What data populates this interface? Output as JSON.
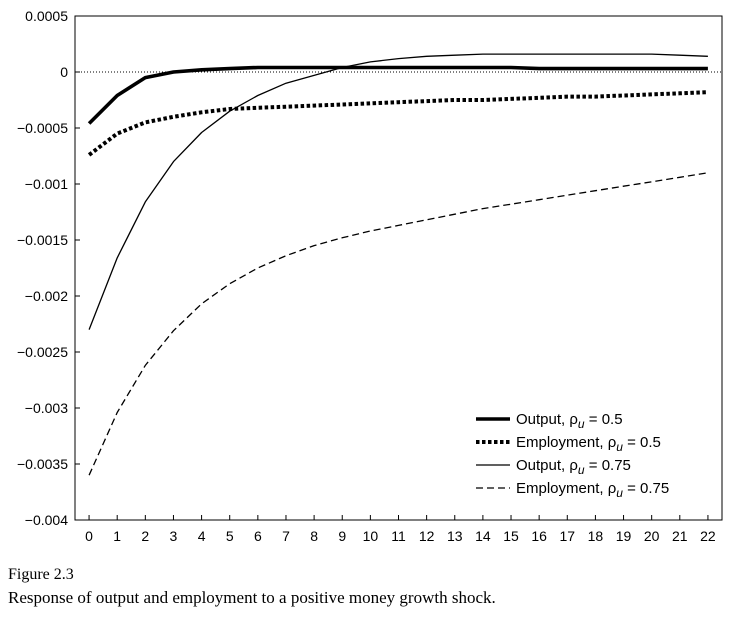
{
  "figure": {
    "title": "Figure 2.3",
    "caption": "Response of output and employment to a positive money growth shock."
  },
  "chart_data": {
    "type": "line",
    "title": "",
    "xlabel": "",
    "ylabel": "",
    "x": [
      0,
      1,
      2,
      3,
      4,
      5,
      6,
      7,
      8,
      9,
      10,
      11,
      12,
      13,
      14,
      15,
      16,
      17,
      18,
      19,
      20,
      21,
      22
    ],
    "xlim": [
      -0.5,
      22.5
    ],
    "ylim": [
      -0.004,
      0.0005
    ],
    "y_ticks": [
      0.0005,
      0,
      -0.0005,
      -0.001,
      -0.0015,
      -0.002,
      -0.0025,
      -0.003,
      -0.0035,
      -0.004
    ],
    "y_tick_labels": [
      "0.0005",
      "0",
      "−0.0005",
      "−0.001",
      "−0.0015",
      "−0.002",
      "−0.0025",
      "−0.003",
      "−0.0035",
      "−0.004"
    ],
    "x_tick_labels": [
      "0",
      "1",
      "2",
      "3",
      "4",
      "5",
      "6",
      "7",
      "8",
      "9",
      "10",
      "11",
      "12",
      "13",
      "14",
      "15",
      "16",
      "17",
      "18",
      "19",
      "20",
      "21",
      "22"
    ],
    "zero_line": "dotted",
    "grid": false,
    "legend_position": "bottom-right",
    "series": [
      {
        "name": "Output, ρu = 0.5",
        "legend_main": "Output, ρ",
        "legend_sub": "u",
        "legend_tail": " = 0.5",
        "style": "thick-solid",
        "values": [
          -0.00046,
          -0.00021,
          -5e-05,
          0.0,
          2e-05,
          3e-05,
          4e-05,
          4e-05,
          4e-05,
          4e-05,
          4e-05,
          4e-05,
          4e-05,
          4e-05,
          4e-05,
          4e-05,
          3e-05,
          3e-05,
          3e-05,
          3e-05,
          3e-05,
          3e-05,
          3e-05
        ]
      },
      {
        "name": "Employment, ρu = 0.5",
        "legend_main": "Employment, ρ",
        "legend_sub": "u",
        "legend_tail": " = 0.5",
        "style": "thick-dotted",
        "values": [
          -0.00074,
          -0.00055,
          -0.00045,
          -0.0004,
          -0.00036,
          -0.00033,
          -0.00032,
          -0.00031,
          -0.0003,
          -0.00029,
          -0.00028,
          -0.00027,
          -0.00026,
          -0.00025,
          -0.00025,
          -0.00024,
          -0.00023,
          -0.00022,
          -0.00022,
          -0.00021,
          -0.0002,
          -0.00019,
          -0.00018
        ]
      },
      {
        "name": "Output, ρu = 0.75",
        "legend_main": "Output, ρ",
        "legend_sub": "u",
        "legend_tail": " = 0.75",
        "style": "thin-solid",
        "values": [
          -0.0023,
          -0.00166,
          -0.00116,
          -0.0008,
          -0.00054,
          -0.00035,
          -0.00021,
          -0.0001,
          -3e-05,
          4e-05,
          9e-05,
          0.00012,
          0.00014,
          0.00015,
          0.00016,
          0.00016,
          0.00016,
          0.00016,
          0.00016,
          0.00016,
          0.00016,
          0.00015,
          0.00014
        ]
      },
      {
        "name": "Employment, ρu = 0.75",
        "legend_main": "Employment, ρ",
        "legend_sub": "u",
        "legend_tail": " = 0.75",
        "style": "dashed",
        "values": [
          -0.0036,
          -0.00304,
          -0.00262,
          -0.00231,
          -0.00207,
          -0.00189,
          -0.00175,
          -0.00164,
          -0.00155,
          -0.00148,
          -0.00142,
          -0.00137,
          -0.00132,
          -0.00127,
          -0.00122,
          -0.00118,
          -0.00114,
          -0.0011,
          -0.00106,
          -0.00102,
          -0.00098,
          -0.00094,
          -0.0009
        ]
      }
    ]
  }
}
